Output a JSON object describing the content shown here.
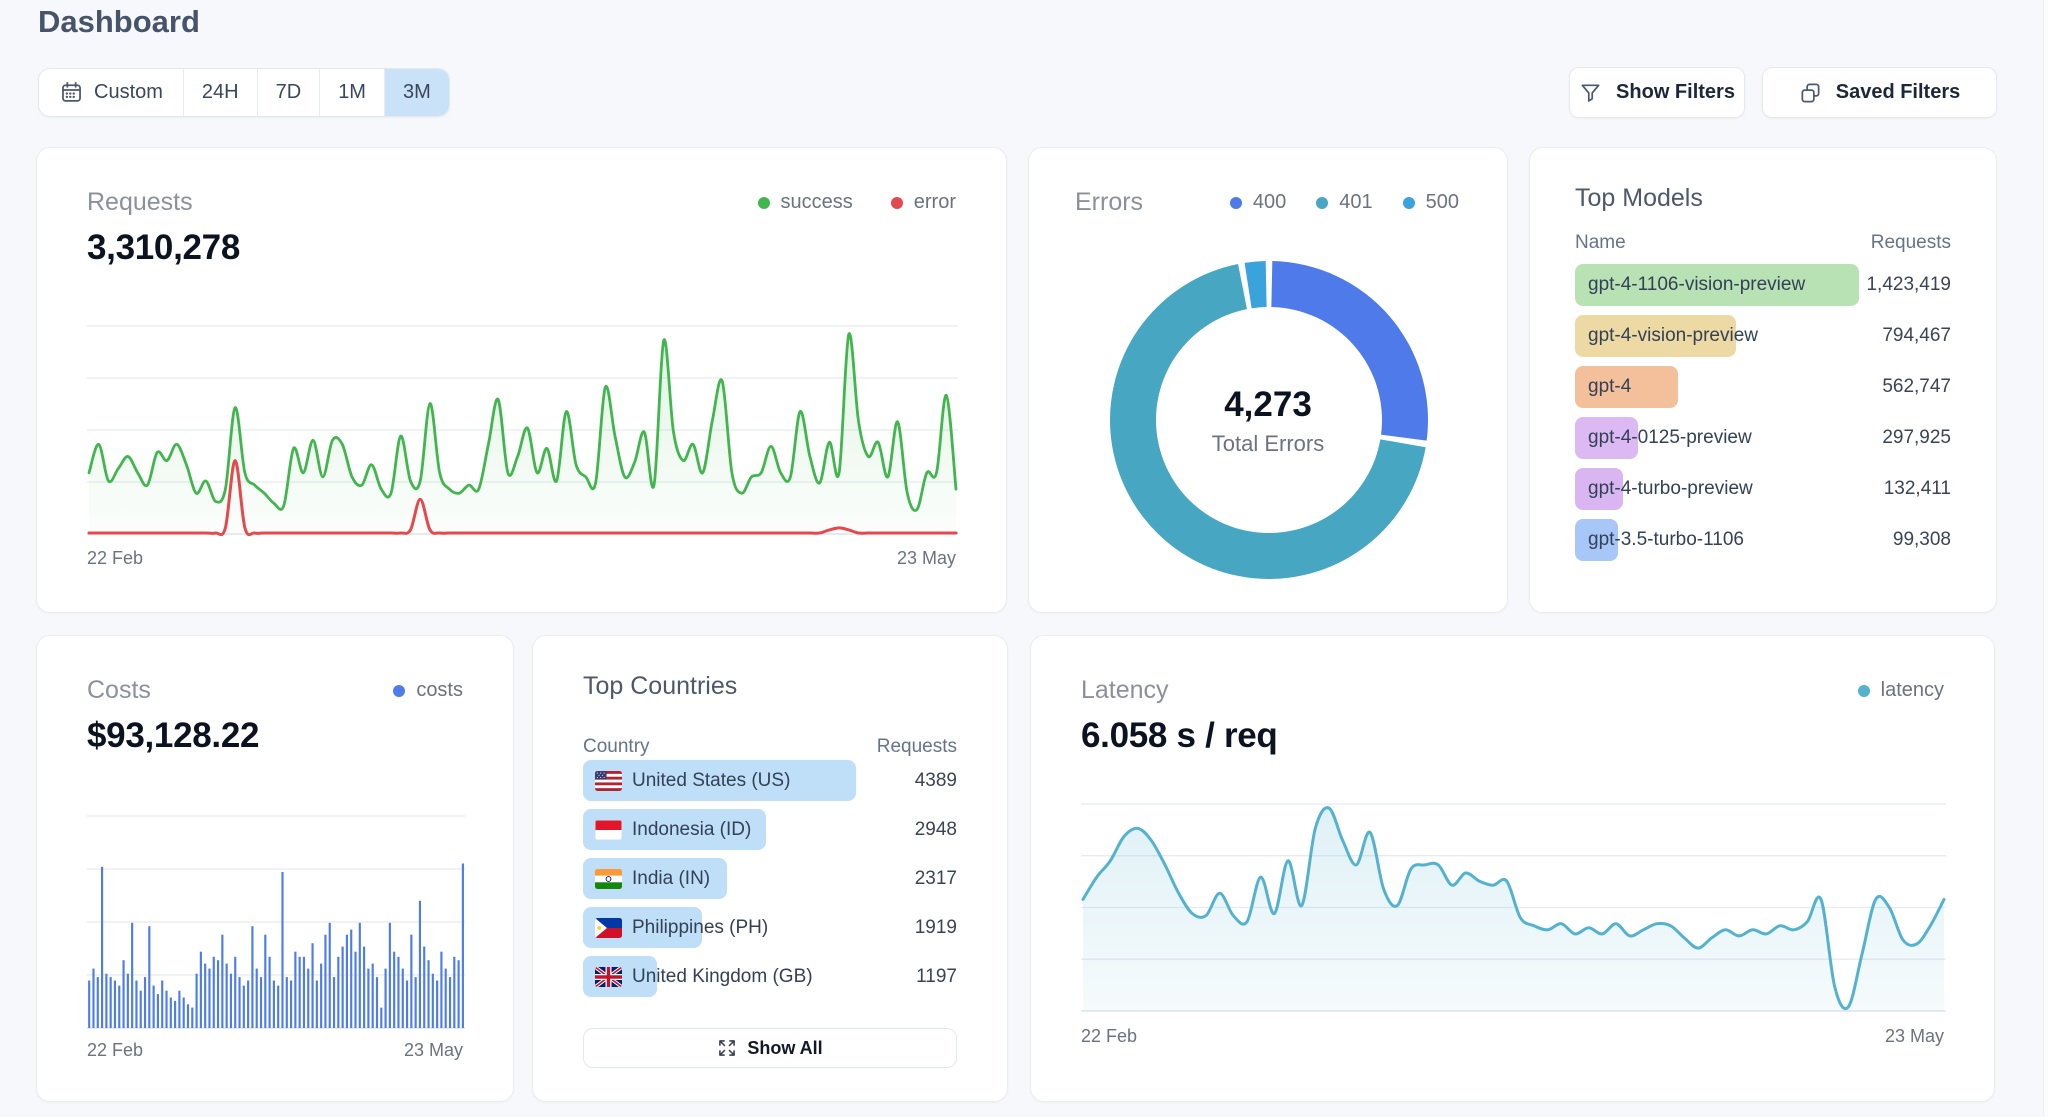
{
  "page": {
    "title": "Dashboard"
  },
  "toolbar": {
    "segments": [
      {
        "label": "Custom",
        "selected": false,
        "icon": "calendar"
      },
      {
        "label": "24H",
        "selected": false
      },
      {
        "label": "7D",
        "selected": false
      },
      {
        "label": "1M",
        "selected": false
      },
      {
        "label": "3M",
        "selected": true
      }
    ],
    "show_filters": "Show Filters",
    "saved_filters": "Saved Filters",
    "selected_bg": "#c9e2f8"
  },
  "cards": {
    "requests": {
      "title": "Requests",
      "total": "3,310,278",
      "legend": [
        {
          "label": "success",
          "color": "#41b64e"
        },
        {
          "label": "error",
          "color": "#e5484d"
        }
      ],
      "x_start": "22 Feb",
      "x_end": "23 May"
    },
    "errors": {
      "title": "Errors",
      "center_value": "4,273",
      "center_label": "Total Errors",
      "legend": [
        {
          "label": "400",
          "color": "#4e7be9"
        },
        {
          "label": "401",
          "color": "#47a7c2"
        },
        {
          "label": "500",
          "color": "#3aa3dc"
        }
      ]
    },
    "top_models": {
      "title": "Top Models",
      "col_name": "Name",
      "col_requests": "Requests",
      "rows": [
        {
          "name": "gpt-4-1106-vision-preview",
          "requests": "1,423,419",
          "color": "#b9e2b4",
          "width_pct": 100
        },
        {
          "name": "gpt-4-vision-preview",
          "requests": "794,467",
          "color": "#edd9a3",
          "width_pct": 56.7
        },
        {
          "name": "gpt-4",
          "requests": "562,747",
          "color": "#f4bf9b",
          "width_pct": 36.3
        },
        {
          "name": "gpt-4-0125-preview",
          "requests": "297,925",
          "color": "#dcb9f3",
          "width_pct": 22.2
        },
        {
          "name": "gpt-4-turbo-preview",
          "requests": "132,411",
          "color": "#d9b6f2",
          "width_pct": 16.9
        },
        {
          "name": "gpt-3.5-turbo-1106",
          "requests": "99,308",
          "color": "#a7c7f9",
          "width_pct": 15.1
        }
      ]
    },
    "costs": {
      "title": "Costs",
      "total": "$93,128.22",
      "legend": [
        {
          "label": "costs",
          "color": "#4e7cea"
        }
      ],
      "x_start": "22 Feb",
      "x_end": "23 May"
    },
    "top_countries": {
      "title": "Top Countries",
      "col_country": "Country",
      "col_requests": "Requests",
      "rows": [
        {
          "name": "United States (US)",
          "code": "US",
          "requests": "4389",
          "width_pct": 73
        },
        {
          "name": "Indonesia (ID)",
          "code": "ID",
          "requests": "2948",
          "width_pct": 49
        },
        {
          "name": "India (IN)",
          "code": "IN",
          "requests": "2317",
          "width_pct": 38.5
        },
        {
          "name": "Philippines (PH)",
          "code": "PH",
          "requests": "1919",
          "width_pct": 31.9
        },
        {
          "name": "United Kingdom (GB)",
          "code": "GB",
          "requests": "1197",
          "width_pct": 19.9
        }
      ],
      "show_all": "Show All",
      "bar_color": "#bedff7"
    },
    "latency": {
      "title": "Latency",
      "total": "6.058 s / req",
      "legend": [
        {
          "label": "latency",
          "color": "#54b2cf"
        }
      ],
      "x_start": "22 Feb",
      "x_end": "23 May"
    }
  },
  "chart_data": [
    {
      "id": "requests",
      "type": "line",
      "title": "Requests",
      "total": 3310278,
      "x_range": [
        "22 Feb",
        "23 May"
      ],
      "grid": true,
      "legend_position": "top-right",
      "series": [
        {
          "name": "success",
          "color": "#41b64e",
          "values": [
            0.3,
            0.44,
            0.26,
            0.32,
            0.38,
            0.3,
            0.24,
            0.4,
            0.36,
            0.44,
            0.34,
            0.2,
            0.26,
            0.16,
            0.22,
            0.62,
            0.3,
            0.24,
            0.2,
            0.15,
            0.14,
            0.42,
            0.3,
            0.46,
            0.28,
            0.46,
            0.44,
            0.28,
            0.24,
            0.34,
            0.22,
            0.2,
            0.48,
            0.26,
            0.26,
            0.64,
            0.3,
            0.22,
            0.2,
            0.24,
            0.22,
            0.44,
            0.66,
            0.3,
            0.38,
            0.52,
            0.3,
            0.42,
            0.26,
            0.6,
            0.34,
            0.28,
            0.25,
            0.72,
            0.48,
            0.28,
            0.35,
            0.5,
            0.24,
            0.95,
            0.5,
            0.36,
            0.44,
            0.3,
            0.56,
            0.75,
            0.3,
            0.2,
            0.28,
            0.3,
            0.43,
            0.3,
            0.28,
            0.6,
            0.38,
            0.25,
            0.45,
            0.3,
            0.98,
            0.55,
            0.38,
            0.45,
            0.28,
            0.55,
            0.2,
            0.12,
            0.3,
            0.3,
            0.68,
            0.22
          ]
        },
        {
          "name": "error",
          "color": "#e5484d",
          "values": [
            0.005,
            0.005,
            0.005,
            0.005,
            0.005,
            0.005,
            0.005,
            0.005,
            0.005,
            0.005,
            0.005,
            0.005,
            0.005,
            0.005,
            0.03,
            0.36,
            0.03,
            0.005,
            0.005,
            0.005,
            0.005,
            0.005,
            0.005,
            0.005,
            0.005,
            0.005,
            0.005,
            0.005,
            0.005,
            0.005,
            0.005,
            0.005,
            0.005,
            0.02,
            0.17,
            0.02,
            0.005,
            0.005,
            0.005,
            0.005,
            0.005,
            0.005,
            0.005,
            0.005,
            0.005,
            0.005,
            0.005,
            0.005,
            0.005,
            0.005,
            0.005,
            0.005,
            0.005,
            0.005,
            0.005,
            0.005,
            0.005,
            0.005,
            0.005,
            0.005,
            0.005,
            0.005,
            0.005,
            0.005,
            0.005,
            0.005,
            0.005,
            0.005,
            0.005,
            0.005,
            0.005,
            0.005,
            0.005,
            0.005,
            0.005,
            0.005,
            0.02,
            0.03,
            0.02,
            0.005,
            0.005,
            0.005,
            0.005,
            0.005,
            0.005,
            0.005,
            0.005,
            0.005,
            0.005,
            0.005
          ]
        }
      ],
      "ylim": [
        0,
        1
      ]
    },
    {
      "id": "errors",
      "type": "pie",
      "title": "Errors",
      "center": {
        "value": 4273,
        "label": "Total Errors"
      },
      "slices": [
        {
          "label": "400",
          "value": 1171,
          "color": "#4e7be9"
        },
        {
          "label": "401",
          "value": 2983,
          "color": "#47a7c2"
        },
        {
          "label": "500",
          "value": 119,
          "color": "#3aa3dc"
        }
      ]
    },
    {
      "id": "top_models",
      "type": "table",
      "title": "Top Models",
      "columns": [
        "Name",
        "Requests"
      ],
      "rows": [
        [
          "gpt-4-1106-vision-preview",
          1423419
        ],
        [
          "gpt-4-vision-preview",
          794467
        ],
        [
          "gpt-4",
          562747
        ],
        [
          "gpt-4-0125-preview",
          297925
        ],
        [
          "gpt-4-turbo-preview",
          132411
        ],
        [
          "gpt-3.5-turbo-1106",
          99308
        ]
      ]
    },
    {
      "id": "costs",
      "type": "bar",
      "title": "Costs",
      "total": 93128.22,
      "x_range": [
        "22 Feb",
        "23 May"
      ],
      "grid": true,
      "series": [
        {
          "name": "costs",
          "color": "#4e7cea",
          "values": [
            0.28,
            0.35,
            0.3,
            0.95,
            0.32,
            0.3,
            0.28,
            0.25,
            0.4,
            0.32,
            0.62,
            0.28,
            0.22,
            0.3,
            0.6,
            0.25,
            0.2,
            0.28,
            0.22,
            0.18,
            0.16,
            0.22,
            0.18,
            0.14,
            0.12,
            0.32,
            0.45,
            0.38,
            0.35,
            0.42,
            0.4,
            0.55,
            0.38,
            0.32,
            0.42,
            0.3,
            0.25,
            0.28,
            0.6,
            0.35,
            0.3,
            0.55,
            0.42,
            0.28,
            0.25,
            0.92,
            0.3,
            0.28,
            0.45,
            0.42,
            0.42,
            0.35,
            0.5,
            0.28,
            0.38,
            0.55,
            0.62,
            0.3,
            0.42,
            0.48,
            0.55,
            0.58,
            0.45,
            0.62,
            0.48,
            0.35,
            0.38,
            0.3,
            0.12,
            0.35,
            0.62,
            0.45,
            0.42,
            0.35,
            0.28,
            0.55,
            0.3,
            0.75,
            0.48,
            0.4,
            0.32,
            0.28,
            0.45,
            0.35,
            0.3,
            0.42,
            0.4,
            0.97
          ]
        }
      ],
      "ylim": [
        0,
        1.25
      ]
    },
    {
      "id": "top_countries",
      "type": "table",
      "title": "Top Countries",
      "columns": [
        "Country",
        "Requests"
      ],
      "rows": [
        [
          "United States (US)",
          4389
        ],
        [
          "Indonesia (ID)",
          2948
        ],
        [
          "India (IN)",
          2317
        ],
        [
          "Philippines (PH)",
          1919
        ],
        [
          "United Kingdom (GB)",
          1197
        ]
      ]
    },
    {
      "id": "latency",
      "type": "line",
      "title": "Latency",
      "total": "6.058 s / req",
      "x_range": [
        "22 Feb",
        "23 May"
      ],
      "grid": true,
      "series": [
        {
          "name": "latency",
          "color": "#54b2cf",
          "values": [
            0.55,
            0.66,
            0.74,
            0.86,
            0.9,
            0.84,
            0.72,
            0.58,
            0.48,
            0.47,
            0.58,
            0.47,
            0.44,
            0.66,
            0.48,
            0.74,
            0.52,
            0.9,
            1.0,
            0.84,
            0.72,
            0.88,
            0.6,
            0.52,
            0.7,
            0.72,
            0.72,
            0.62,
            0.68,
            0.64,
            0.62,
            0.64,
            0.46,
            0.42,
            0.4,
            0.43,
            0.38,
            0.41,
            0.38,
            0.43,
            0.37,
            0.4,
            0.43,
            0.42,
            0.36,
            0.31,
            0.36,
            0.4,
            0.37,
            0.4,
            0.38,
            0.42,
            0.4,
            0.44,
            0.55,
            0.12,
            0.02,
            0.28,
            0.55,
            0.51,
            0.35,
            0.33,
            0.42,
            0.55
          ]
        }
      ],
      "ylim": [
        0,
        1
      ]
    }
  ]
}
